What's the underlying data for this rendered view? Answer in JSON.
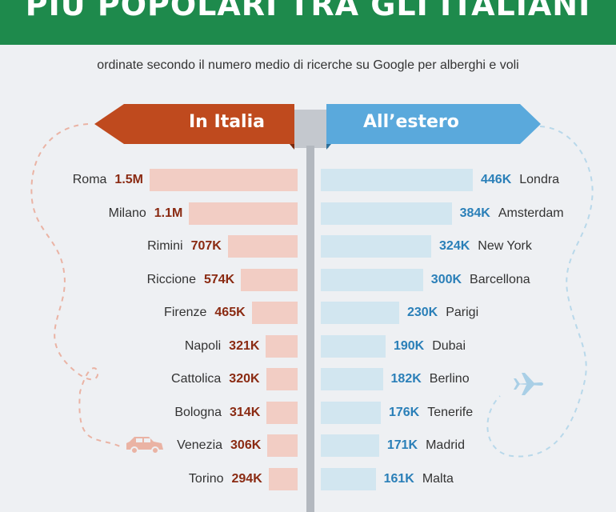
{
  "header": {
    "title": "PIÙ POPOLARI TRA GLI ITALIANI"
  },
  "subtitle": "ordinate secondo il numero medio di ricerche su Google per alberghi e voli",
  "colors": {
    "header": "#1e8a4c",
    "italia": "#bf4a1e",
    "estero": "#5aa9dc",
    "italia_bar": "#f2cdc4",
    "estero_bar": "#d2e6f0"
  },
  "icons": [
    "car-icon",
    "airplane-icon"
  ],
  "chart_data": {
    "type": "bar",
    "orientation": "horizontal-diverging",
    "series": [
      {
        "name": "In Italia",
        "categories": [
          "Roma",
          "Milano",
          "Rimini",
          "Riccione",
          "Firenze",
          "Napoli",
          "Cattolica",
          "Bologna",
          "Venezia",
          "Torino"
        ],
        "labels": [
          "1.5M",
          "1.1M",
          "707K",
          "574K",
          "465K",
          "321K",
          "320K",
          "314K",
          "306K",
          "294K"
        ],
        "values": [
          1500000,
          1100000,
          707000,
          574000,
          465000,
          321000,
          320000,
          314000,
          306000,
          294000
        ]
      },
      {
        "name": "All’estero",
        "categories": [
          "Londra",
          "Amsterdam",
          "New York",
          "Barcellona",
          "Parigi",
          "Dubai",
          "Berlino",
          "Tenerife",
          "Madrid",
          "Malta"
        ],
        "labels": [
          "446K",
          "384K",
          "324K",
          "300K",
          "230K",
          "190K",
          "182K",
          "176K",
          "171K",
          "161K"
        ],
        "values": [
          446000,
          384000,
          324000,
          300000,
          230000,
          190000,
          182000,
          176000,
          171000,
          161000
        ]
      }
    ]
  }
}
